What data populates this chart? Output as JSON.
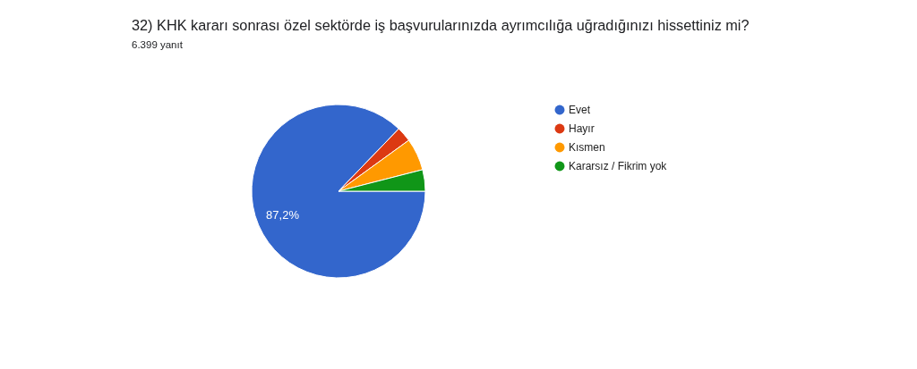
{
  "chart_data": {
    "type": "pie",
    "title": "32) KHK kararı sonrası özel sektörde iş başvurularınızda ayrımcılığa uğradığınızı hissettiniz mi?",
    "subtitle": "6.399 yanıt",
    "categories": [
      "Evet",
      "Hayır",
      "Kısmen",
      "Kararsız / Fikrim yok"
    ],
    "values": [
      87.2,
      2.8,
      6.0,
      4.0
    ],
    "colors": [
      "#3366cc",
      "#dc3912",
      "#ff9900",
      "#109618"
    ],
    "value_labels": [
      "87,2%",
      null,
      null,
      null
    ],
    "legend": "right"
  }
}
